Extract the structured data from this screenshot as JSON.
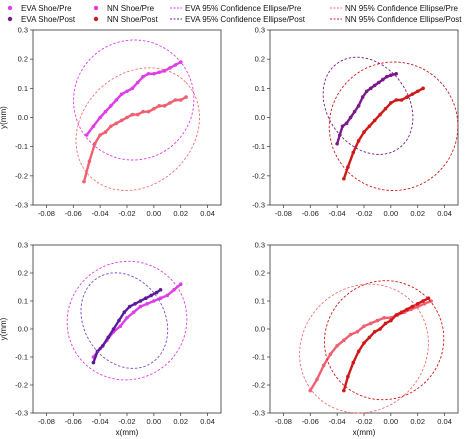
{
  "legend": [
    {
      "label": "EVA Shoe/Pre",
      "color": "#e03ce8",
      "kind": "dots"
    },
    {
      "label": "NN Shoe/Pre",
      "color": "#ff2fd0",
      "kind": "dots"
    },
    {
      "label": "EVA 95% Confidence Ellipse/Pre",
      "color": "#e03ce8",
      "kind": "dash"
    },
    {
      "label": "NN 95% Confidence Ellipse/Pre",
      "color": "#f07070",
      "kind": "dash"
    },
    {
      "label": "EVA Shoe/Post",
      "color": "#7a1a8a",
      "kind": "dots"
    },
    {
      "label": "NN Shoe/Post",
      "color": "#d01818",
      "kind": "dots"
    },
    {
      "label": "EVA 95% Confidence Ellipse/Post",
      "color": "#7a1a8a",
      "kind": "dash"
    },
    {
      "label": "NN 95% Confidence Ellipse/Post",
      "color": "#d01818",
      "kind": "dash"
    }
  ],
  "chart_data": [
    {
      "type": "scatter",
      "xlabel": "",
      "ylabel": "y(mm)",
      "xlim": [
        -0.09,
        0.05
      ],
      "ylim": [
        -0.3,
        0.3
      ],
      "xticks": [
        "-0.08",
        "-0.06",
        "-0.04",
        "-0.02",
        "0.00",
        "0.02",
        "0.04"
      ],
      "yticks": [
        "-0.3",
        "-0.2",
        "-0.1",
        "0.0",
        "0.1",
        "0.2",
        "0.3"
      ],
      "series": [
        {
          "name": "EVA Shoe/Pre",
          "color": "#e03ce8",
          "x": [
            -0.05,
            -0.045,
            -0.04,
            -0.036,
            -0.032,
            -0.028,
            -0.024,
            -0.02,
            -0.016,
            -0.012,
            -0.008,
            -0.004,
            0.0,
            0.004,
            0.008,
            0.012,
            0.016,
            0.02
          ],
          "y": [
            -0.06,
            -0.03,
            0.0,
            0.02,
            0.04,
            0.06,
            0.08,
            0.09,
            0.1,
            0.12,
            0.14,
            0.15,
            0.15,
            0.155,
            0.16,
            0.17,
            0.18,
            0.19
          ]
        },
        {
          "name": "NN Shoe/Pre",
          "color": "#f06070",
          "x": [
            -0.052,
            -0.048,
            -0.044,
            -0.04,
            -0.036,
            -0.032,
            -0.028,
            -0.024,
            -0.02,
            -0.016,
            -0.012,
            -0.008,
            -0.004,
            0.0,
            0.004,
            0.008,
            0.012,
            0.016,
            0.02,
            0.024
          ],
          "y": [
            -0.22,
            -0.15,
            -0.09,
            -0.06,
            -0.05,
            -0.03,
            -0.02,
            -0.01,
            0.0,
            0.01,
            0.01,
            0.02,
            0.02,
            0.03,
            0.04,
            0.04,
            0.05,
            0.06,
            0.06,
            0.07
          ]
        },
        {
          "name": "EVA 95% Confidence Ellipse/Pre",
          "color": "#e03ce8",
          "kind": "ellipse",
          "cx": -0.015,
          "cy": 0.06,
          "rx": 0.045,
          "ry": 0.205,
          "angle": -37
        },
        {
          "name": "NN 95% Confidence Ellipse/Pre",
          "color": "#f07070",
          "kind": "ellipse",
          "cx": -0.012,
          "cy": -0.04,
          "rx": 0.05,
          "ry": 0.19,
          "angle": -44
        }
      ]
    },
    {
      "type": "scatter",
      "xlabel": "",
      "ylabel": "",
      "xlim": [
        -0.09,
        0.05
      ],
      "ylim": [
        -0.3,
        0.3
      ],
      "xticks": [
        "-0.08",
        "-0.06",
        "-0.04",
        "-0.02",
        "0.00",
        "0.02",
        "0.04"
      ],
      "yticks": [
        "-0.3",
        "-0.2",
        "-0.1",
        "0.0",
        "0.1",
        "0.2",
        "0.3"
      ],
      "series": [
        {
          "name": "EVA Shoe/Post",
          "color": "#7a1a8a",
          "x": [
            -0.04,
            -0.038,
            -0.036,
            -0.033,
            -0.03,
            -0.027,
            -0.024,
            -0.021,
            -0.018,
            -0.015,
            -0.012,
            -0.009,
            -0.006,
            -0.003,
            0.0,
            0.004
          ],
          "y": [
            -0.09,
            -0.06,
            -0.03,
            -0.02,
            0.0,
            0.02,
            0.04,
            0.07,
            0.09,
            0.1,
            0.11,
            0.12,
            0.13,
            0.14,
            0.145,
            0.15
          ]
        },
        {
          "name": "NN Shoe/Post",
          "color": "#d01818",
          "x": [
            -0.035,
            -0.032,
            -0.028,
            -0.024,
            -0.02,
            -0.016,
            -0.012,
            -0.008,
            -0.004,
            0.0,
            0.004,
            0.008,
            0.012,
            0.016,
            0.02,
            0.024
          ],
          "y": [
            -0.21,
            -0.17,
            -0.12,
            -0.08,
            -0.05,
            -0.03,
            -0.01,
            0.01,
            0.03,
            0.05,
            0.06,
            0.06,
            0.07,
            0.08,
            0.09,
            0.1
          ]
        },
        {
          "name": "EVA 95% Confidence Ellipse/Post",
          "color": "#7a1a8a",
          "kind": "ellipse",
          "cx": -0.017,
          "cy": 0.04,
          "rx": 0.03,
          "ry": 0.18,
          "angle": -36
        },
        {
          "name": "NN 95% Confidence Ellipse/Post",
          "color": "#d01818",
          "kind": "ellipse",
          "cx": 0.002,
          "cy": -0.03,
          "rx": 0.048,
          "ry": 0.22,
          "angle": -40
        }
      ]
    },
    {
      "type": "scatter",
      "xlabel": "x(mm)",
      "ylabel": "y(mm)",
      "xlim": [
        -0.09,
        0.05
      ],
      "ylim": [
        -0.3,
        0.3
      ],
      "xticks": [
        "-0.08",
        "-0.06",
        "-0.04",
        "-0.02",
        "0.00",
        "0.02",
        "0.04"
      ],
      "yticks": [
        "-0.3",
        "-0.2",
        "-0.1",
        "0.0",
        "0.1",
        "0.2",
        "0.3"
      ],
      "series": [
        {
          "name": "EVA Shoe/Pre",
          "color": "#e03ce8",
          "x": [
            -0.045,
            -0.04,
            -0.035,
            -0.03,
            -0.025,
            -0.02,
            -0.015,
            -0.01,
            -0.005,
            0.0,
            0.005,
            0.01,
            0.015,
            0.02
          ],
          "y": [
            -0.1,
            -0.07,
            -0.04,
            -0.01,
            0.01,
            0.04,
            0.06,
            0.08,
            0.09,
            0.1,
            0.11,
            0.12,
            0.14,
            0.16
          ]
        },
        {
          "name": "EVA Shoe/Post",
          "color": "#5c1a9a",
          "x": [
            -0.045,
            -0.042,
            -0.038,
            -0.034,
            -0.03,
            -0.026,
            -0.022,
            -0.018,
            -0.014,
            -0.01,
            -0.006,
            -0.002,
            0.002,
            0.005
          ],
          "y": [
            -0.12,
            -0.08,
            -0.06,
            -0.03,
            0.0,
            0.03,
            0.06,
            0.08,
            0.09,
            0.1,
            0.11,
            0.12,
            0.13,
            0.14
          ]
        },
        {
          "name": "EVA 95% Confidence Ellipse/Pre",
          "color": "#e03ce8",
          "kind": "ellipse",
          "cx": -0.02,
          "cy": 0.03,
          "rx": 0.045,
          "ry": 0.21,
          "angle": -35
        },
        {
          "name": "EVA 95% Confidence Ellipse/Post",
          "color": "#7a4ad0",
          "kind": "ellipse",
          "cx": -0.022,
          "cy": 0.03,
          "rx": 0.03,
          "ry": 0.18,
          "angle": -32
        }
      ]
    },
    {
      "type": "scatter",
      "xlabel": "x(mm)",
      "ylabel": "",
      "xlim": [
        -0.09,
        0.05
      ],
      "ylim": [
        -0.3,
        0.3
      ],
      "xticks": [
        "-0.08",
        "-0.06",
        "-0.04",
        "-0.02",
        "0.00",
        "0.02",
        "0.04"
      ],
      "yticks": [
        "-0.3",
        "-0.2",
        "-0.1",
        "0.0",
        "0.1",
        "0.2",
        "0.3"
      ],
      "series": [
        {
          "name": "NN Shoe/Pre",
          "color": "#f06070",
          "x": [
            -0.06,
            -0.055,
            -0.05,
            -0.045,
            -0.04,
            -0.035,
            -0.03,
            -0.025,
            -0.02,
            -0.015,
            -0.01,
            -0.005,
            0.0,
            0.005,
            0.01,
            0.015,
            0.02,
            0.025,
            0.03
          ],
          "y": [
            -0.22,
            -0.18,
            -0.13,
            -0.09,
            -0.06,
            -0.04,
            -0.02,
            -0.01,
            0.01,
            0.02,
            0.03,
            0.04,
            0.04,
            0.05,
            0.06,
            0.07,
            0.08,
            0.09,
            0.1
          ]
        },
        {
          "name": "NN Shoe/Post",
          "color": "#d01818",
          "x": [
            -0.035,
            -0.032,
            -0.028,
            -0.024,
            -0.02,
            -0.016,
            -0.012,
            -0.008,
            -0.004,
            0.0,
            0.004,
            0.008,
            0.012,
            0.016,
            0.02,
            0.024,
            0.028
          ],
          "y": [
            -0.22,
            -0.17,
            -0.12,
            -0.08,
            -0.05,
            -0.03,
            -0.01,
            0.0,
            0.02,
            0.03,
            0.05,
            0.06,
            0.07,
            0.08,
            0.09,
            0.1,
            0.11
          ]
        },
        {
          "name": "NN 95% Confidence Ellipse/Pre",
          "color": "#f07070",
          "kind": "ellipse",
          "cx": -0.02,
          "cy": -0.07,
          "rx": 0.05,
          "ry": 0.22,
          "angle": -45
        },
        {
          "name": "NN 95% Confidence Ellipse/Post",
          "color": "#d01818",
          "kind": "ellipse",
          "cx": -0.005,
          "cy": -0.04,
          "rx": 0.045,
          "ry": 0.21,
          "angle": -42
        }
      ]
    }
  ]
}
